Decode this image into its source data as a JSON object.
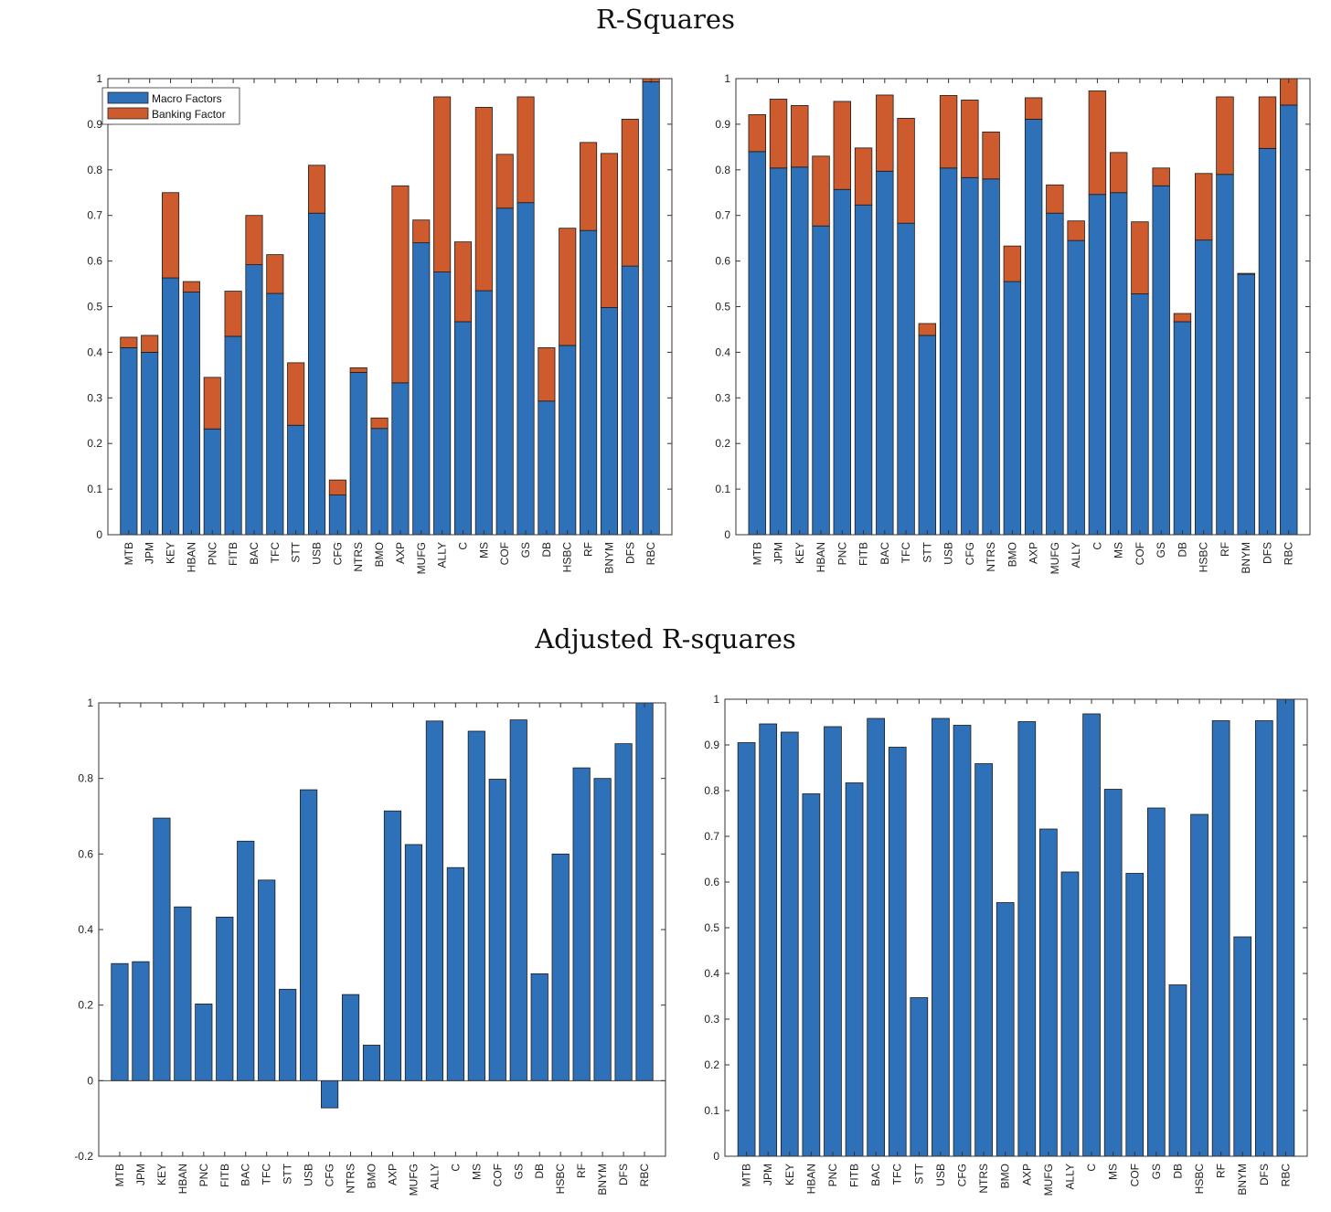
{
  "titles": {
    "top": "R-Squares",
    "bottom": "Adjusted R-squares"
  },
  "colors": {
    "macro": "#2f71b8",
    "banking": "#cd5b2e"
  },
  "chart_data": [
    {
      "type": "bar",
      "stacked": true,
      "ylim": [
        0,
        1
      ],
      "yticks": [
        "0",
        "0.1",
        "0.2",
        "0.3",
        "0.4",
        "0.5",
        "0.6",
        "0.7",
        "0.8",
        "0.9",
        "1"
      ],
      "legend": "top-left",
      "categories": [
        "MTB",
        "JPM",
        "KEY",
        "HBAN",
        "PNC",
        "FITB",
        "BAC",
        "TFC",
        "STT",
        "USB",
        "CFG",
        "NTRS",
        "BMO",
        "AXP",
        "MUFG",
        "ALLY",
        "C",
        "MS",
        "COF",
        "GS",
        "DB",
        "HSBC",
        "RF",
        "BNYM",
        "DFS",
        "RBC"
      ],
      "series": [
        {
          "name": "Macro Factors",
          "values": [
            0.41,
            0.4,
            0.563,
            0.532,
            0.232,
            0.435,
            0.592,
            0.529,
            0.24,
            0.705,
            0.087,
            0.356,
            0.233,
            0.333,
            0.64,
            0.576,
            0.467,
            0.535,
            0.716,
            0.728,
            0.293,
            0.415,
            0.667,
            0.498,
            0.589,
            0.993
          ]
        },
        {
          "name": "Banking Factor",
          "values": [
            0.023,
            0.037,
            0.187,
            0.023,
            0.113,
            0.099,
            0.108,
            0.085,
            0.137,
            0.105,
            0.033,
            0.01,
            0.023,
            0.432,
            0.05,
            0.384,
            0.175,
            0.402,
            0.118,
            0.232,
            0.117,
            0.257,
            0.193,
            0.338,
            0.322,
            0.007
          ]
        }
      ]
    },
    {
      "type": "bar",
      "stacked": true,
      "ylim": [
        0,
        1
      ],
      "yticks": [
        "0",
        "0.1",
        "0.2",
        "0.3",
        "0.4",
        "0.5",
        "0.6",
        "0.7",
        "0.8",
        "0.9",
        "1"
      ],
      "categories": [
        "MTB",
        "JPM",
        "KEY",
        "HBAN",
        "PNC",
        "FITB",
        "BAC",
        "TFC",
        "STT",
        "USB",
        "CFG",
        "NTRS",
        "BMO",
        "AXP",
        "MUFG",
        "ALLY",
        "C",
        "MS",
        "COF",
        "GS",
        "DB",
        "HSBC",
        "RF",
        "BNYM",
        "DFS",
        "RBC"
      ],
      "series": [
        {
          "values": [
            0.84,
            0.804,
            0.806,
            0.677,
            0.757,
            0.723,
            0.797,
            0.683,
            0.437,
            0.804,
            0.783,
            0.78,
            0.555,
            0.911,
            0.705,
            0.645,
            0.746,
            0.75,
            0.528,
            0.765,
            0.467,
            0.646,
            0.79,
            0.571,
            0.847,
            0.942
          ]
        },
        {
          "values": [
            0.081,
            0.151,
            0.135,
            0.153,
            0.193,
            0.125,
            0.167,
            0.23,
            0.026,
            0.159,
            0.17,
            0.103,
            0.078,
            0.047,
            0.062,
            0.043,
            0.227,
            0.088,
            0.158,
            0.039,
            0.018,
            0.146,
            0.17,
            0.002,
            0.113,
            0.058
          ]
        }
      ]
    },
    {
      "type": "bar",
      "ylim": [
        -0.2,
        1
      ],
      "yticks": [
        "-0.2",
        "0",
        "0.2",
        "0.4",
        "0.6",
        "0.8",
        "1"
      ],
      "categories": [
        "MTB",
        "JPM",
        "KEY",
        "HBAN",
        "PNC",
        "FITB",
        "BAC",
        "TFC",
        "STT",
        "USB",
        "CFG",
        "NTRS",
        "BMO",
        "AXP",
        "MUFG",
        "ALLY",
        "C",
        "MS",
        "COF",
        "GS",
        "DB",
        "HSBC",
        "RF",
        "BNYM",
        "DFS",
        "RBC"
      ],
      "series": [
        {
          "values": [
            0.31,
            0.315,
            0.695,
            0.46,
            0.203,
            0.433,
            0.634,
            0.531,
            0.242,
            0.77,
            -0.072,
            0.228,
            0.094,
            0.714,
            0.625,
            0.952,
            0.564,
            0.925,
            0.798,
            0.955,
            0.283,
            0.6,
            0.828,
            0.8,
            0.892,
            1.0
          ]
        }
      ]
    },
    {
      "type": "bar",
      "ylim": [
        0,
        1
      ],
      "yticks": [
        "0",
        "0.1",
        "0.2",
        "0.3",
        "0.4",
        "0.5",
        "0.6",
        "0.7",
        "0.8",
        "0.9",
        "1"
      ],
      "categories": [
        "MTB",
        "JPM",
        "KEY",
        "HBAN",
        "PNC",
        "FITB",
        "BAC",
        "TFC",
        "STT",
        "USB",
        "CFG",
        "NTRS",
        "BMO",
        "AXP",
        "MUFG",
        "ALLY",
        "C",
        "MS",
        "COF",
        "GS",
        "DB",
        "HSBC",
        "RF",
        "BNYM",
        "DFS",
        "RBC"
      ],
      "series": [
        {
          "values": [
            0.905,
            0.946,
            0.928,
            0.793,
            0.94,
            0.817,
            0.958,
            0.895,
            0.347,
            0.958,
            0.943,
            0.859,
            0.555,
            0.951,
            0.716,
            0.622,
            0.968,
            0.803,
            0.619,
            0.762,
            0.375,
            0.748,
            0.953,
            0.48,
            0.953,
            1.0
          ]
        }
      ]
    }
  ]
}
